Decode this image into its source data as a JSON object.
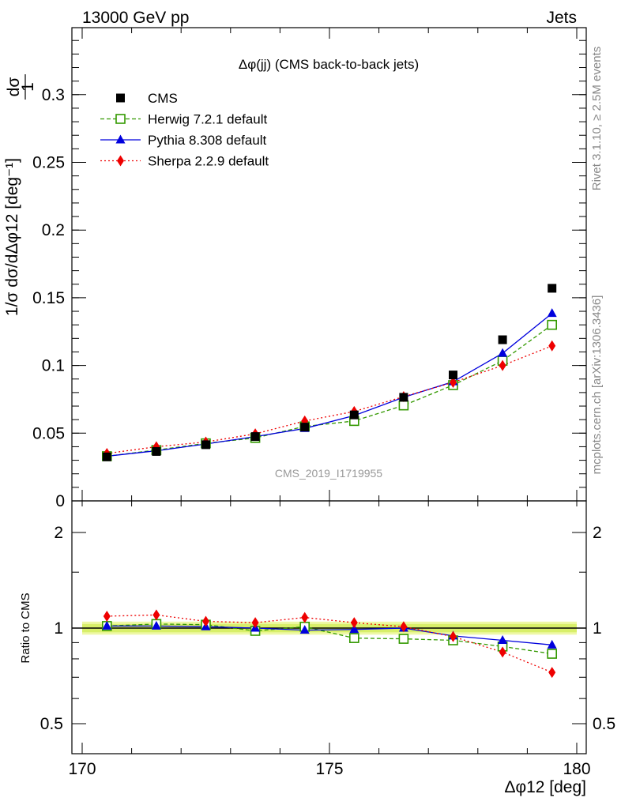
{
  "header": {
    "energy": "13000 GeV pp",
    "process": "Jets",
    "rivet_version": "Rivet 3.1.10, ≥ 2.5M events",
    "mcplots": "mcplots.cern.ch [arXiv:1306.3436]"
  },
  "chart_data": {
    "type": "line",
    "title": "Δφ(jj) (CMS back-to-back jets)",
    "analysis_id": "CMS_2019_I1719955",
    "ylabel_top": "1/σ dσ/dΔφ12 [deg⁻¹]",
    "ylabel_ratio": "Ratio to CMS",
    "xlabel": "Δφ12 [deg]",
    "xlim": [
      170,
      180
    ],
    "ylim": [
      0,
      0.35
    ],
    "ratio_ylim": [
      0.35,
      2.25
    ],
    "x_ticks": [
      "170",
      "175",
      "180"
    ],
    "y_ticks": [
      "0",
      "0.05",
      "0.1",
      "0.15",
      "0.2",
      "0.25",
      "0.3"
    ],
    "ratio_ticks": [
      "0.5",
      "1",
      "2"
    ],
    "x": [
      170.5,
      171.5,
      172.5,
      173.5,
      174.5,
      175.5,
      176.5,
      177.5,
      178.5,
      179.5
    ],
    "series": [
      {
        "name": "CMS",
        "color": "#000000",
        "marker": "square-filled",
        "values": [
          0.0325,
          0.0365,
          0.0415,
          0.0475,
          0.0545,
          0.0635,
          0.0765,
          0.093,
          0.119,
          0.157
        ]
      },
      {
        "name": "Herwig 7.2.1 default",
        "color": "#339900",
        "marker": "square-open",
        "dash": "5,3",
        "values": [
          0.033,
          0.0375,
          0.0425,
          0.0465,
          0.055,
          0.059,
          0.0705,
          0.0855,
          0.1035,
          0.13
        ]
      },
      {
        "name": "Pythia 8.308 default",
        "color": "#0000dd",
        "marker": "triangle",
        "dash": "",
        "values": [
          0.033,
          0.037,
          0.042,
          0.0475,
          0.0535,
          0.063,
          0.0765,
          0.088,
          0.109,
          0.1385
        ]
      },
      {
        "name": "Sherpa 2.2.9 default",
        "color": "#ee0000",
        "marker": "diamond",
        "dash": "2,3",
        "values": [
          0.035,
          0.04,
          0.0435,
          0.0495,
          0.059,
          0.066,
          0.077,
          0.0875,
          0.1,
          0.1145
        ]
      }
    ],
    "ratio": [
      {
        "name": "Herwig 7.2.1 default",
        "values": [
          1.015,
          1.03,
          1.025,
          0.98,
          1.01,
          0.93,
          0.925,
          0.915,
          0.875,
          0.83
        ]
      },
      {
        "name": "Pythia 8.308 default",
        "values": [
          1.015,
          1.015,
          1.01,
          1.0,
          0.985,
          0.99,
          1.0,
          0.945,
          0.915,
          0.885
        ]
      },
      {
        "name": "Sherpa 2.2.9 default",
        "values": [
          1.09,
          1.1,
          1.05,
          1.04,
          1.08,
          1.04,
          1.01,
          0.94,
          0.84,
          0.725
        ]
      }
    ],
    "ratio_band": [
      0.97,
      1.03
    ],
    "grid": false,
    "legend_position": "top-left"
  }
}
